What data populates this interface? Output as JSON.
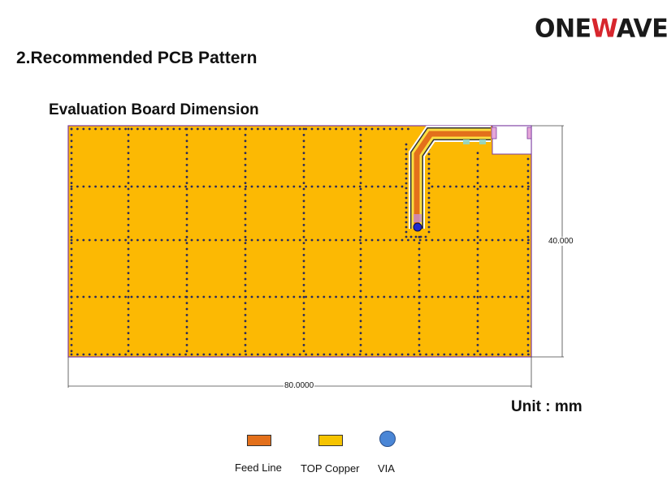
{
  "logo": {
    "part1": "ONE",
    "part2": "W",
    "part3": "AVE"
  },
  "section_title": "2.Recommended PCB Pattern",
  "board_title": "Evaluation Board Dimension",
  "dimensions": {
    "height": "40.000",
    "width": "80.0000"
  },
  "unit_label": "Unit : mm",
  "legend": [
    {
      "label": "Feed Line",
      "color": "#e3701b"
    },
    {
      "label": "TOP Copper",
      "color": "#f6c400"
    },
    {
      "label": "VIA",
      "color": "#4a86d6"
    }
  ],
  "colors": {
    "copper": "#fcb903",
    "feed_line": "#e3701b",
    "via_dot": "#2b2b5c",
    "board_outline": "#7a3aa0"
  }
}
